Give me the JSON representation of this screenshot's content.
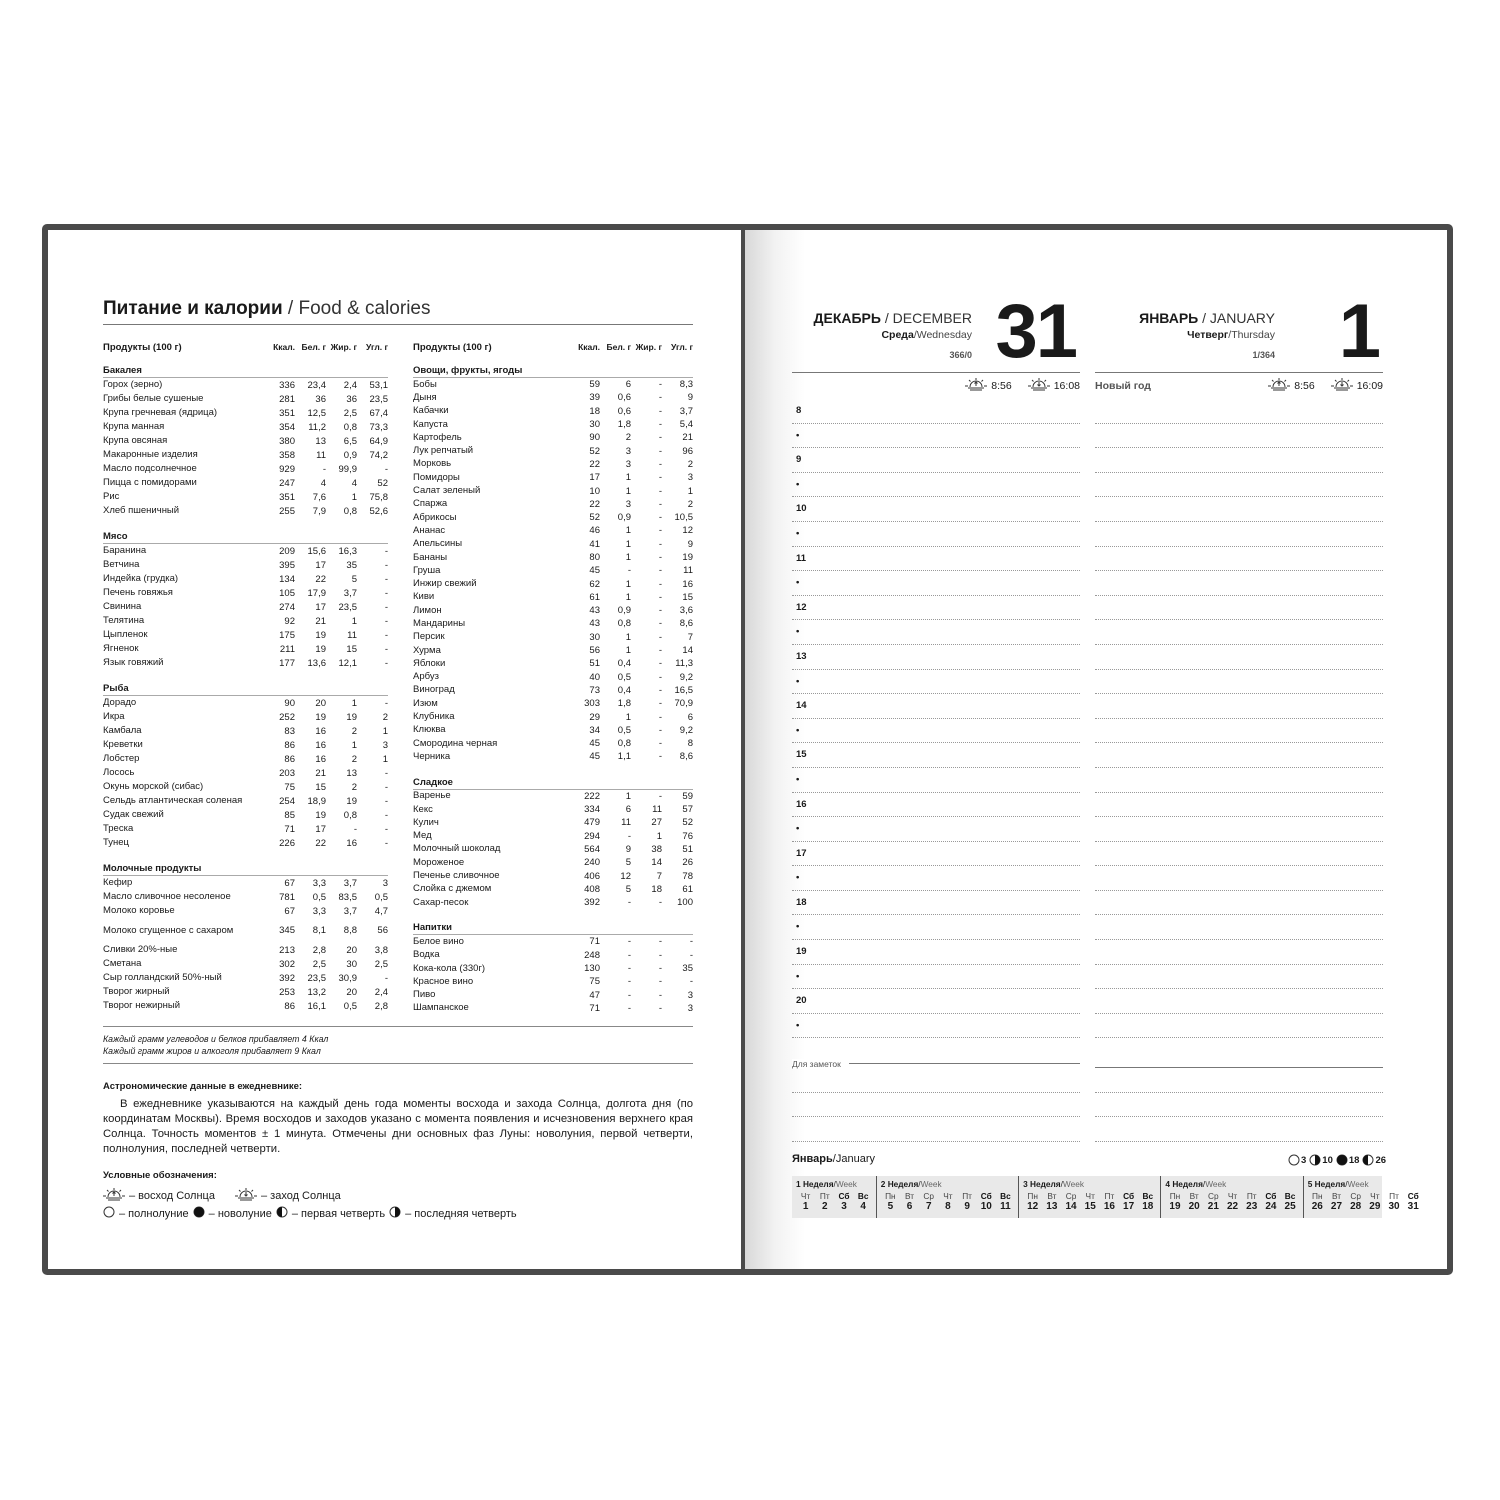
{
  "left_page": {
    "title_ru": "Питание и калории",
    "title_sep": " / ",
    "title_en": "Food & calories",
    "headers": [
      "Продукты (100 г)",
      "Ккал.",
      "Бел. г",
      "Жир. г",
      "Угл. г"
    ],
    "columns": [
      [
        {
          "name": "Бакалея",
          "rows": [
            [
              "Горох (зерно)",
              "336",
              "23,4",
              "2,4",
              "53,1"
            ],
            [
              "Грибы белые сушеные",
              "281",
              "36",
              "36",
              "23,5"
            ],
            [
              "Крупа гречневая (ядрица)",
              "351",
              "12,5",
              "2,5",
              "67,4"
            ],
            [
              "Крупа манная",
              "354",
              "11,2",
              "0,8",
              "73,3"
            ],
            [
              "Крупа овсяная",
              "380",
              "13",
              "6,5",
              "64,9"
            ],
            [
              "Макаронные изделия",
              "358",
              "11",
              "0,9",
              "74,2"
            ],
            [
              "Масло подсолнечное",
              "929",
              "-",
              "99,9",
              "-"
            ],
            [
              "Пицца с помидорами",
              "247",
              "4",
              "4",
              "52"
            ],
            [
              "Рис",
              "351",
              "7,6",
              "1",
              "75,8"
            ],
            [
              "Хлеб пшеничный",
              "255",
              "7,9",
              "0,8",
              "52,6"
            ]
          ]
        },
        {
          "name": "Мясо",
          "rows": [
            [
              "Баранина",
              "209",
              "15,6",
              "16,3",
              "-"
            ],
            [
              "Ветчина",
              "395",
              "17",
              "35",
              "-"
            ],
            [
              "Индейка (грудка)",
              "134",
              "22",
              "5",
              "-"
            ],
            [
              "Печень говяжья",
              "105",
              "17,9",
              "3,7",
              "-"
            ],
            [
              "Свинина",
              "274",
              "17",
              "23,5",
              "-"
            ],
            [
              "Телятина",
              "92",
              "21",
              "1",
              "-"
            ],
            [
              "Цыпленок",
              "175",
              "19",
              "11",
              "-"
            ],
            [
              "Ягненок",
              "211",
              "19",
              "15",
              "-"
            ],
            [
              "Язык говяжий",
              "177",
              "13,6",
              "12,1",
              "-"
            ]
          ]
        },
        {
          "name": "Рыба",
          "rows": [
            [
              "Дорадо",
              "90",
              "20",
              "1",
              "-"
            ],
            [
              "Икра",
              "252",
              "19",
              "19",
              "2"
            ],
            [
              "Камбала",
              "83",
              "16",
              "2",
              "1"
            ],
            [
              "Креветки",
              "86",
              "16",
              "1",
              "3"
            ],
            [
              "Лобстер",
              "86",
              "16",
              "2",
              "1"
            ],
            [
              "Лосось",
              "203",
              "21",
              "13",
              "-"
            ],
            [
              "Окунь морской (сибас)",
              "75",
              "15",
              "2",
              "-"
            ],
            [
              "Сельдь атлантическая соленая",
              "254",
              "18,9",
              "19",
              "-"
            ],
            [
              "Судак свежий",
              "85",
              "19",
              "0,8",
              "-"
            ],
            [
              "Треска",
              "71",
              "17",
              "-",
              "-"
            ],
            [
              "Тунец",
              "226",
              "22",
              "16",
              "-"
            ]
          ]
        },
        {
          "name": "Молочные продукты",
          "rows": [
            [
              "Кефир",
              "67",
              "3,3",
              "3,7",
              "3"
            ],
            [
              "Масло сливочное несоленое",
              "781",
              "0,5",
              "83,5",
              "0,5"
            ],
            [
              "Молоко коровье",
              "67",
              "3,3",
              "3,7",
              "4,7"
            ],
            [
              "Молоко сгущенное с сахаром",
              "345",
              "8,1",
              "8,8",
              "56"
            ],
            [
              "Сливки 20%-ные",
              "213",
              "2,8",
              "20",
              "3,8"
            ],
            [
              "Сметана",
              "302",
              "2,5",
              "30",
              "2,5"
            ],
            [
              "Сыр голландский 50%-ный",
              "392",
              "23,5",
              "30,9",
              "-"
            ],
            [
              "Творог жирный",
              "253",
              "13,2",
              "20",
              "2,4"
            ],
            [
              "Творог нежирный",
              "86",
              "16,1",
              "0,5",
              "2,8"
            ]
          ]
        }
      ],
      [
        {
          "name": "Овощи, фрукты, ягоды",
          "rows": [
            [
              "Бобы",
              "59",
              "6",
              "-",
              "8,3"
            ],
            [
              "Дыня",
              "39",
              "0,6",
              "-",
              "9"
            ],
            [
              "Кабачки",
              "18",
              "0,6",
              "-",
              "3,7"
            ],
            [
              "Капуста",
              "30",
              "1,8",
              "-",
              "5,4"
            ],
            [
              "Картофель",
              "90",
              "2",
              "-",
              "21"
            ],
            [
              "Лук репчатый",
              "52",
              "3",
              "-",
              "96"
            ],
            [
              "Морковь",
              "22",
              "3",
              "-",
              "2"
            ],
            [
              "Помидоры",
              "17",
              "1",
              "-",
              "3"
            ],
            [
              "Салат зеленый",
              "10",
              "1",
              "-",
              "1"
            ],
            [
              "Спаржа",
              "22",
              "3",
              "-",
              "2"
            ],
            [
              "Абрикосы",
              "52",
              "0,9",
              "-",
              "10,5"
            ],
            [
              "Ананас",
              "46",
              "1",
              "-",
              "12"
            ],
            [
              "Апельсины",
              "41",
              "1",
              "-",
              "9"
            ],
            [
              "Бананы",
              "80",
              "1",
              "-",
              "19"
            ],
            [
              "Груша",
              "45",
              "-",
              "-",
              "11"
            ],
            [
              "Инжир свежий",
              "62",
              "1",
              "-",
              "16"
            ],
            [
              "Киви",
              "61",
              "1",
              "-",
              "15"
            ],
            [
              "Лимон",
              "43",
              "0,9",
              "-",
              "3,6"
            ],
            [
              "Мандарины",
              "43",
              "0,8",
              "-",
              "8,6"
            ],
            [
              "Персик",
              "30",
              "1",
              "-",
              "7"
            ],
            [
              "Хурма",
              "56",
              "1",
              "-",
              "14"
            ],
            [
              "Яблоки",
              "51",
              "0,4",
              "-",
              "11,3"
            ],
            [
              "Арбуз",
              "40",
              "0,5",
              "-",
              "9,2"
            ],
            [
              "Виноград",
              "73",
              "0,4",
              "-",
              "16,5"
            ],
            [
              "Изюм",
              "303",
              "1,8",
              "-",
              "70,9"
            ],
            [
              "Клубника",
              "29",
              "1",
              "-",
              "6"
            ],
            [
              "Клюква",
              "34",
              "0,5",
              "-",
              "9,2"
            ],
            [
              "Смородина черная",
              "45",
              "0,8",
              "-",
              "8"
            ],
            [
              "Черника",
              "45",
              "1,1",
              "-",
              "8,6"
            ]
          ]
        },
        {
          "name": "Сладкое",
          "rows": [
            [
              "Варенье",
              "222",
              "1",
              "-",
              "59"
            ],
            [
              "Кекс",
              "334",
              "6",
              "11",
              "57"
            ],
            [
              "Кулич",
              "479",
              "11",
              "27",
              "52"
            ],
            [
              "Мед",
              "294",
              "-",
              "1",
              "76"
            ],
            [
              "Молочный шоколад",
              "564",
              "9",
              "38",
              "51"
            ],
            [
              "Мороженое",
              "240",
              "5",
              "14",
              "26"
            ],
            [
              "Печенье сливочное",
              "406",
              "12",
              "7",
              "78"
            ],
            [
              "Слойка с джемом",
              "408",
              "5",
              "18",
              "61"
            ],
            [
              "Сахар-песок",
              "392",
              "-",
              "-",
              "100"
            ]
          ]
        },
        {
          "name": "Напитки",
          "rows": [
            [
              "Белое вино",
              "71",
              "-",
              "-",
              "-"
            ],
            [
              "Водка",
              "248",
              "-",
              "-",
              "-"
            ],
            [
              "Кока-кола (330г)",
              "130",
              "-",
              "-",
              "35"
            ],
            [
              "Красное вино",
              "75",
              "-",
              "-",
              "-"
            ],
            [
              "Пиво",
              "47",
              "-",
              "-",
              "3"
            ],
            [
              "Шампанское",
              "71",
              "-",
              "-",
              "3"
            ]
          ]
        }
      ]
    ],
    "notes": [
      "Каждый грамм углеводов и белков прибавляет 4 Ккал",
      "Каждый грамм жиров и алкоголя прибавляет 9 Ккал"
    ],
    "astro_heading": "Астрономические данные в ежедневнике:",
    "astro_text": "В ежедневнике указываются на каждый день года моменты восхода и захода Солнца, долгота дня (по координатам Москвы). Время восходов и заходов указано с момента появления и исчезновения верхнего края Солнца. Точность моментов ± 1 минута. Отмечены дни основных фаз Луны: новолуния, первой четверти, полнолуния, последней четверти.",
    "legend_heading": "Условные обозначения:",
    "legend": {
      "sunrise": "– восход Солнца",
      "sunset": "– заход Солнца",
      "full": "– полнолуние",
      "new": "– новолуние",
      "first": "– первая четверть",
      "last": "– последняя четверть"
    }
  },
  "right_page": {
    "days": [
      {
        "month_ru": "ДЕКАБРЬ",
        "month_en": "DECEMBER",
        "weekday_ru": "Среда",
        "weekday_en": "Wednesday",
        "year_day": "366/0",
        "number": "31",
        "holiday": "",
        "sunrise": "8:56",
        "sunset": "16:08"
      },
      {
        "month_ru": "ЯНВАРЬ",
        "month_en": "JANUARY",
        "weekday_ru": "Четверг",
        "weekday_en": "Thursday",
        "year_day": "1/364",
        "number": "1",
        "holiday": "Новый год",
        "sunrise": "8:56",
        "sunset": "16:09"
      }
    ],
    "hours": [
      "8",
      "•",
      "9",
      "•",
      "10",
      "•",
      "11",
      "•",
      "12",
      "•",
      "13",
      "•",
      "14",
      "•",
      "15",
      "•",
      "16",
      "•",
      "17",
      "•",
      "18",
      "•",
      "19",
      "•",
      "20",
      "•"
    ],
    "notes_label": "Для заметок",
    "calendar": {
      "month_ru": "Январь",
      "month_en": "January",
      "moons": [
        {
          "phase": "full",
          "day": "3"
        },
        {
          "phase": "last",
          "day": "10"
        },
        {
          "phase": "new",
          "day": "18"
        },
        {
          "phase": "first",
          "day": "26"
        }
      ],
      "week_label_ru": "Неделя",
      "week_label_en": "Week",
      "weeks": [
        {
          "num": "1",
          "days": [
            [
              "Чт",
              "1"
            ],
            [
              "Пт",
              "2"
            ],
            [
              "Сб",
              "3"
            ],
            [
              "Вс",
              "4"
            ]
          ]
        },
        {
          "num": "2",
          "days": [
            [
              "Пн",
              "5"
            ],
            [
              "Вт",
              "6"
            ],
            [
              "Ср",
              "7"
            ],
            [
              "Чт",
              "8"
            ],
            [
              "Пт",
              "9"
            ],
            [
              "Сб",
              "10"
            ],
            [
              "Вс",
              "11"
            ]
          ]
        },
        {
          "num": "3",
          "days": [
            [
              "Пн",
              "12"
            ],
            [
              "Вт",
              "13"
            ],
            [
              "Ср",
              "14"
            ],
            [
              "Чт",
              "15"
            ],
            [
              "Пт",
              "16"
            ],
            [
              "Сб",
              "17"
            ],
            [
              "Вс",
              "18"
            ]
          ]
        },
        {
          "num": "4",
          "days": [
            [
              "Пн",
              "19"
            ],
            [
              "Вт",
              "20"
            ],
            [
              "Ср",
              "21"
            ],
            [
              "Чт",
              "22"
            ],
            [
              "Пт",
              "23"
            ],
            [
              "Сб",
              "24"
            ],
            [
              "Вс",
              "25"
            ]
          ]
        },
        {
          "num": "5",
          "days": [
            [
              "Пн",
              "26"
            ],
            [
              "Вт",
              "27"
            ],
            [
              "Ср",
              "28"
            ],
            [
              "Чт",
              "29"
            ],
            [
              "Пт",
              "30"
            ],
            [
              "Сб",
              "31"
            ]
          ]
        }
      ]
    }
  },
  "colors": {
    "frame": "#4a4a4a",
    "calendar_bar": "#e9e9e9"
  }
}
